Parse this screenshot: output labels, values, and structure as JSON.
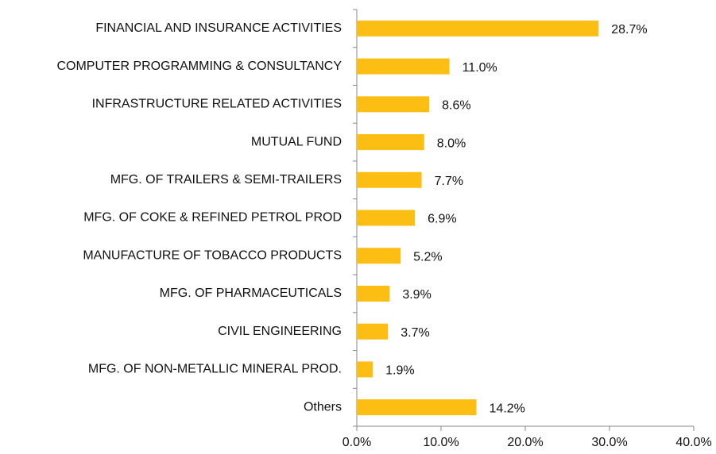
{
  "chart_data": {
    "type": "bar",
    "orientation": "horizontal",
    "categories": [
      "FINANCIAL AND INSURANCE ACTIVITIES",
      "COMPUTER PROGRAMMING & CONSULTANCY",
      "INFRASTRUCTURE RELATED ACTIVITIES",
      "MUTUAL FUND",
      "MFG. OF TRAILERS & SEMI-TRAILERS",
      "MFG. OF COKE & REFINED PETROL PROD",
      "MANUFACTURE OF TOBACCO PRODUCTS",
      "MFG. OF PHARMACEUTICALS",
      "CIVIL ENGINEERING",
      "MFG. OF NON-METALLIC MINERAL PROD.",
      "Others"
    ],
    "values": [
      28.7,
      11.0,
      8.6,
      8.0,
      7.7,
      6.9,
      5.2,
      3.9,
      3.7,
      1.9,
      14.2
    ],
    "value_labels": [
      "28.7%",
      "11.0%",
      "8.6%",
      "8.0%",
      "7.7%",
      "6.9%",
      "5.2%",
      "3.9%",
      "3.7%",
      "1.9%",
      "14.2%"
    ],
    "color": "#fdbe14",
    "xlim": [
      0,
      40
    ],
    "xticks": [
      {
        "value": 0,
        "label": "0.0%"
      },
      {
        "value": 10,
        "label": "10.0%"
      },
      {
        "value": 20,
        "label": "20.0%"
      },
      {
        "value": 30,
        "label": "30.0%"
      },
      {
        "value": 40,
        "label": "40.0%"
      }
    ]
  }
}
